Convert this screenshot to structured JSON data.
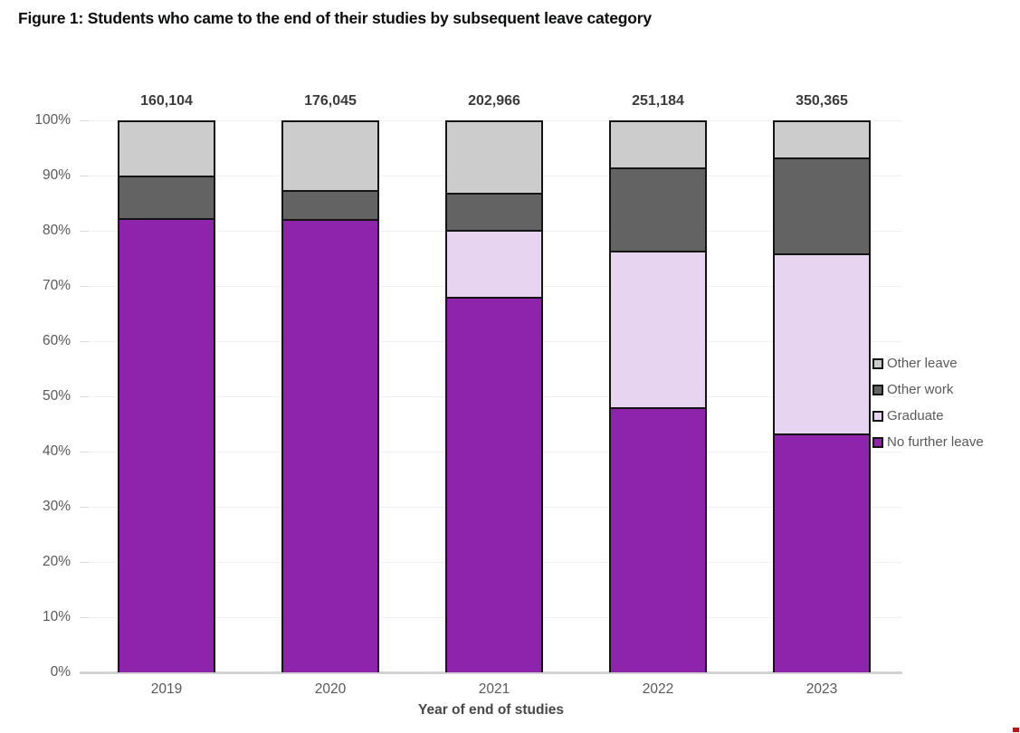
{
  "title": "Figure 1: Students who came to the end of their studies by subsequent leave category",
  "chart_data": {
    "type": "bar",
    "stacked": true,
    "title": "Figure 1: Students who came to the end of their studies by subsequent leave category",
    "categories": [
      "2019",
      "2020",
      "2021",
      "2022",
      "2023"
    ],
    "totals": [
      "160,104",
      "176,045",
      "202,966",
      "251,184",
      "350,365"
    ],
    "series": [
      {
        "name": "No further leave",
        "color": "#8E24AC",
        "values": [
          82.5,
          82.4,
          68.2,
          48.2,
          43.4
        ]
      },
      {
        "name": "Graduate",
        "color": "#E7D4F1",
        "values": [
          0,
          0,
          12.3,
          28.4,
          32.7
        ]
      },
      {
        "name": "Other work",
        "color": "#636363",
        "values": [
          7.8,
          5.2,
          6.7,
          15.2,
          17.5
        ]
      },
      {
        "name": "Other leave",
        "color": "#CCCCCC",
        "values": [
          9.7,
          12.4,
          12.8,
          8.2,
          6.4
        ]
      }
    ],
    "xlabel": "Year of end of studies",
    "ylabel": "",
    "ylim": [
      0,
      100
    ],
    "y_ticks": [
      "100%",
      "90%",
      "80%",
      "70%",
      "60%",
      "50%",
      "40%",
      "30%",
      "20%",
      "10%",
      "0%"
    ],
    "grid": "horizontal",
    "legend": [
      "Other leave",
      "Other work",
      "Graduate",
      "No further leave"
    ],
    "legend_position": "right"
  }
}
